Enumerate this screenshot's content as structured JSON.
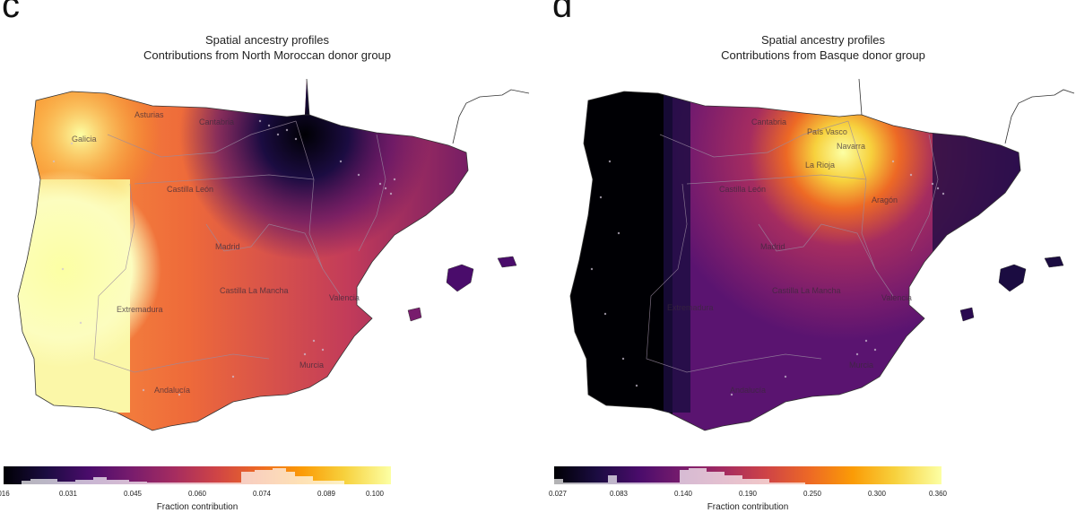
{
  "panels": [
    {
      "letter": "c",
      "title_line1": "Spatial ancestry profiles",
      "title_line2": "Contributions from North Moroccan donor group",
      "regions": [
        "Galicia",
        "Asturias",
        "Cantabria",
        "Castilla León",
        "Madrid",
        "Extremadura",
        "Castilla La Mancha",
        "Valencia",
        "Murcia",
        "Andalucía"
      ],
      "colorbar": {
        "ticks": [
          "016",
          "0.031",
          "0.045",
          "0.060",
          "0.074",
          "0.089",
          "0.100"
        ],
        "label": "Fraction contribution"
      }
    },
    {
      "letter": "d",
      "title_line1": "Spatial ancestry profiles",
      "title_line2": "Contributions from Basque donor group",
      "regions": [
        "Cantabria",
        "País Vasco",
        "Navarra",
        "La Rioja",
        "Castilla León",
        "Aragón",
        "Madrid",
        "Castilla La Mancha",
        "Extremadura",
        "Valencia",
        "Murcia",
        "Andalucía"
      ],
      "colorbar": {
        "ticks": [
          "0.027",
          "0.083",
          "0.140",
          "0.190",
          "0.250",
          "0.300",
          "0.360"
        ],
        "label": "Fraction contribution"
      }
    }
  ],
  "colormap": [
    "#000004",
    "#1b0c41",
    "#4a0c6b",
    "#781c6d",
    "#a52c60",
    "#cf4446",
    "#ed6925",
    "#fb9b06",
    "#f7d13d",
    "#fcffa4"
  ]
}
